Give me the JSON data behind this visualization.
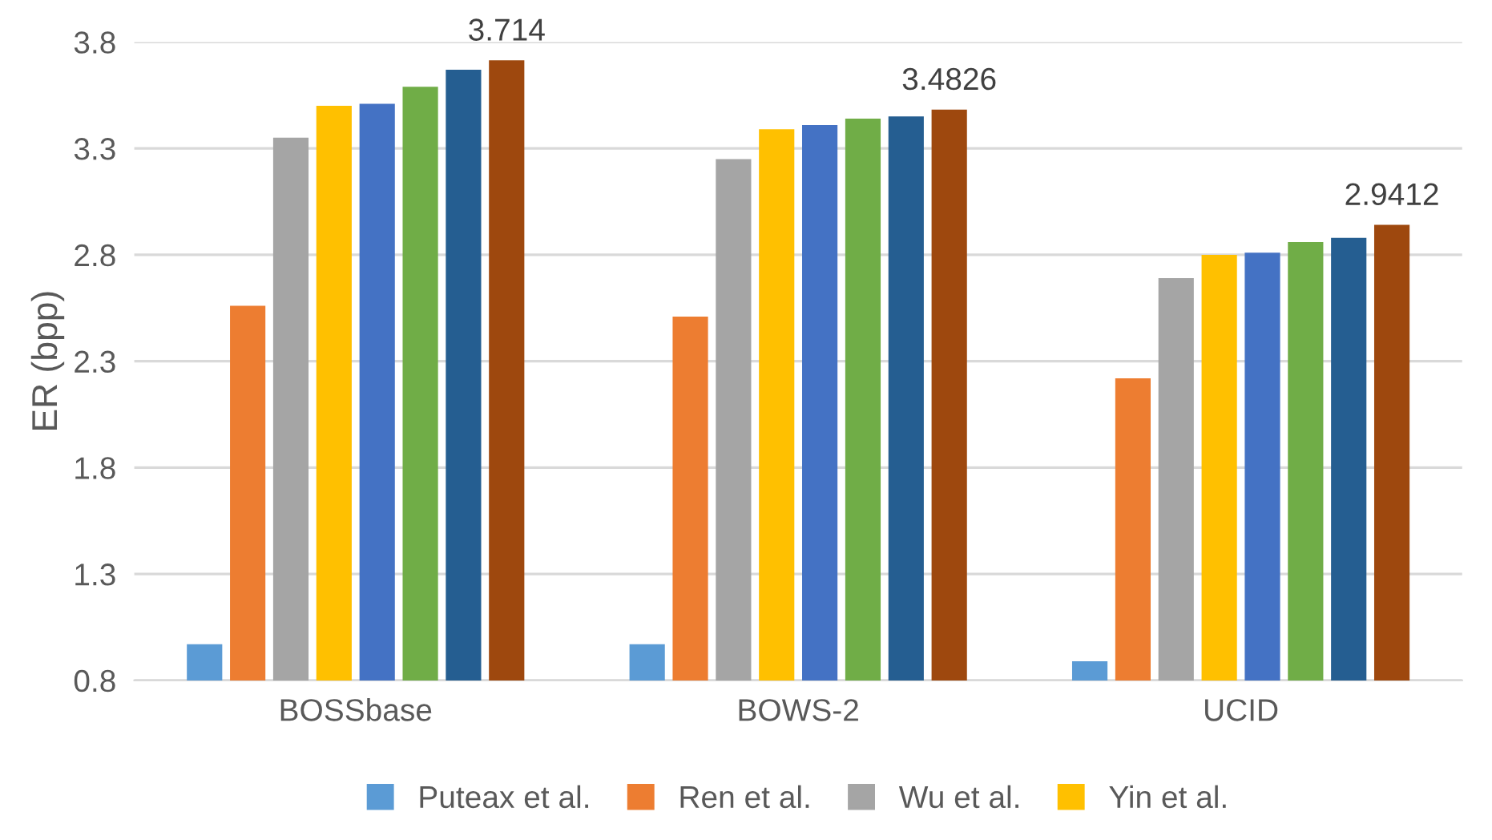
{
  "chart_data": {
    "type": "bar",
    "ylabel": "ER (bpp)",
    "categories": [
      "BOSSbase",
      "BOWS-2",
      "UCID"
    ],
    "series": [
      {
        "name": "Puteax et al.",
        "color": "#5b9bd5",
        "values": [
          0.97,
          0.97,
          0.89
        ]
      },
      {
        "name": "Ren et al.",
        "color": "#ed7d31",
        "values": [
          2.56,
          2.51,
          2.22
        ]
      },
      {
        "name": "Wu et al.",
        "color": "#a5a5a5",
        "values": [
          3.35,
          3.25,
          2.69
        ]
      },
      {
        "name": "Yin et al.",
        "color": "#ffc000",
        "values": [
          3.5,
          3.39,
          2.8
        ]
      },
      {
        "color": "#4472c4",
        "values": [
          3.51,
          3.41,
          2.81
        ]
      },
      {
        "color": "#70ad47",
        "values": [
          3.59,
          3.44,
          2.86
        ]
      },
      {
        "color": "#255e91",
        "values": [
          3.67,
          3.45,
          2.88
        ]
      },
      {
        "color": "#9e480e",
        "values": [
          3.714,
          3.4826,
          2.9412
        ],
        "value_labels": [
          "3.714",
          "3.4826",
          "2.9412"
        ]
      }
    ],
    "ylim": [
      0.8,
      3.8
    ],
    "yticks": [
      0.8,
      1.3,
      1.8,
      2.3,
      2.8,
      3.3,
      3.8
    ],
    "grid": "y",
    "legend": "bottom"
  }
}
